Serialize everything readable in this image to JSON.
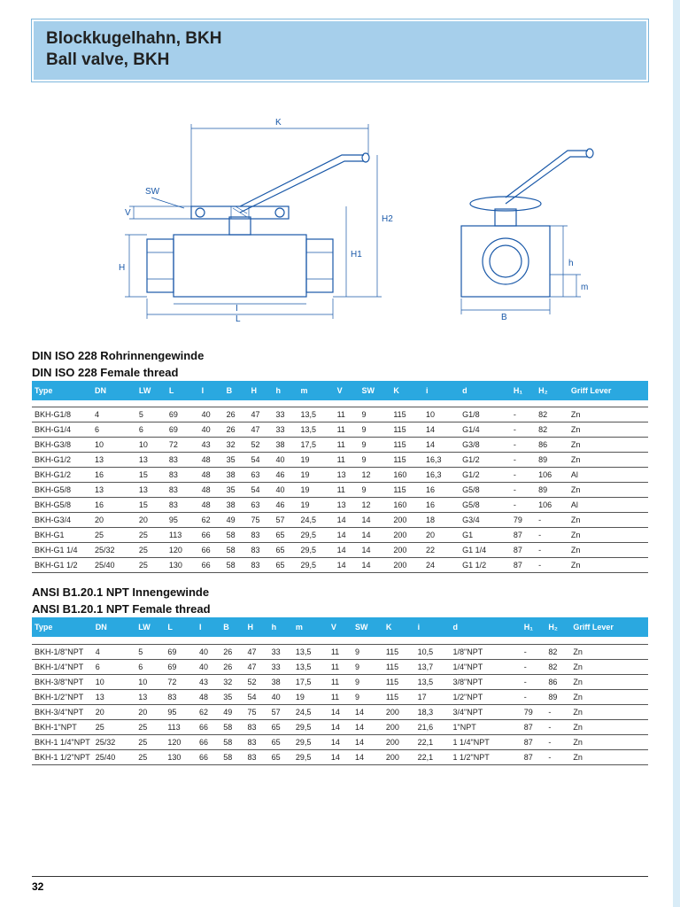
{
  "title": {
    "line1": "Blockkugelhahn, BKH",
    "line2": "Ball valve, BKH"
  },
  "diagram_labels": {
    "K": "K",
    "SW": "SW",
    "V": "V",
    "H": "H",
    "L": "L",
    "I": "I",
    "H1": "H1",
    "H2": "H2",
    "B": "B",
    "h": "h",
    "m": "m"
  },
  "tables": [
    {
      "heading1": "DIN ISO 228 Rohrinnengewinde",
      "heading2": "DIN ISO 228 Female thread",
      "columns": [
        "Type",
        "DN",
        "LW",
        "L",
        "I",
        "B",
        "H",
        "h",
        "m",
        "V",
        "SW",
        "K",
        "i",
        "d",
        "H₁",
        "H₂",
        "Griff Lever"
      ],
      "rows": [
        [
          "BKH-G1/8",
          "4",
          "5",
          "69",
          "40",
          "26",
          "47",
          "33",
          "13,5",
          "11",
          "9",
          "115",
          "10",
          "G1/8",
          "-",
          "82",
          "Zn"
        ],
        [
          "BKH-G1/4",
          "6",
          "6",
          "69",
          "40",
          "26",
          "47",
          "33",
          "13,5",
          "11",
          "9",
          "115",
          "14",
          "G1/4",
          "-",
          "82",
          "Zn"
        ],
        [
          "BKH-G3/8",
          "10",
          "10",
          "72",
          "43",
          "32",
          "52",
          "38",
          "17,5",
          "11",
          "9",
          "115",
          "14",
          "G3/8",
          "-",
          "86",
          "Zn"
        ],
        [
          "BKH-G1/2",
          "13",
          "13",
          "83",
          "48",
          "35",
          "54",
          "40",
          "19",
          "11",
          "9",
          "115",
          "16,3",
          "G1/2",
          "-",
          "89",
          "Zn"
        ],
        [
          "BKH-G1/2",
          "16",
          "15",
          "83",
          "48",
          "38",
          "63",
          "46",
          "19",
          "13",
          "12",
          "160",
          "16,3",
          "G1/2",
          "-",
          "106",
          "Al"
        ],
        [
          "BKH-G5/8",
          "13",
          "13",
          "83",
          "48",
          "35",
          "54",
          "40",
          "19",
          "11",
          "9",
          "115",
          "16",
          "G5/8",
          "-",
          "89",
          "Zn"
        ],
        [
          "BKH-G5/8",
          "16",
          "15",
          "83",
          "48",
          "38",
          "63",
          "46",
          "19",
          "13",
          "12",
          "160",
          "16",
          "G5/8",
          "-",
          "106",
          "Al"
        ],
        [
          "BKH-G3/4",
          "20",
          "20",
          "95",
          "62",
          "49",
          "75",
          "57",
          "24,5",
          "14",
          "14",
          "200",
          "18",
          "G3/4",
          "79",
          "-",
          "Zn"
        ],
        [
          "BKH-G1",
          "25",
          "25",
          "113",
          "66",
          "58",
          "83",
          "65",
          "29,5",
          "14",
          "14",
          "200",
          "20",
          "G1",
          "87",
          "-",
          "Zn"
        ],
        [
          "BKH-G1 1/4",
          "25/32",
          "25",
          "120",
          "66",
          "58",
          "83",
          "65",
          "29,5",
          "14",
          "14",
          "200",
          "22",
          "G1 1/4",
          "87",
          "-",
          "Zn"
        ],
        [
          "BKH-G1 1/2",
          "25/40",
          "25",
          "130",
          "66",
          "58",
          "83",
          "65",
          "29,5",
          "14",
          "14",
          "200",
          "24",
          "G1 1/2",
          "87",
          "-",
          "Zn"
        ]
      ]
    },
    {
      "heading1": "ANSI B1.20.1 NPT Innengewinde",
      "heading2": "ANSI B1.20.1 NPT Female thread",
      "columns": [
        "Type",
        "DN",
        "LW",
        "L",
        "I",
        "B",
        "H",
        "h",
        "m",
        "V",
        "SW",
        "K",
        "i",
        "d",
        "H₁",
        "H₂",
        "Griff Lever"
      ],
      "rows": [
        [
          "BKH-1/8\"NPT",
          "4",
          "5",
          "69",
          "40",
          "26",
          "47",
          "33",
          "13,5",
          "11",
          "9",
          "115",
          "10,5",
          "1/8\"NPT",
          "-",
          "82",
          "Zn"
        ],
        [
          "BKH-1/4\"NPT",
          "6",
          "6",
          "69",
          "40",
          "26",
          "47",
          "33",
          "13,5",
          "11",
          "9",
          "115",
          "13,7",
          "1/4\"NPT",
          "-",
          "82",
          "Zn"
        ],
        [
          "BKH-3/8\"NPT",
          "10",
          "10",
          "72",
          "43",
          "32",
          "52",
          "38",
          "17,5",
          "11",
          "9",
          "115",
          "13,5",
          "3/8\"NPT",
          "-",
          "86",
          "Zn"
        ],
        [
          "BKH-1/2\"NPT",
          "13",
          "13",
          "83",
          "48",
          "35",
          "54",
          "40",
          "19",
          "11",
          "9",
          "115",
          "17",
          "1/2\"NPT",
          "-",
          "89",
          "Zn"
        ],
        [
          "BKH-3/4\"NPT",
          "20",
          "20",
          "95",
          "62",
          "49",
          "75",
          "57",
          "24,5",
          "14",
          "14",
          "200",
          "18,3",
          "3/4\"NPT",
          "79",
          "-",
          "Zn"
        ],
        [
          "BKH-1\"NPT",
          "25",
          "25",
          "113",
          "66",
          "58",
          "83",
          "65",
          "29,5",
          "14",
          "14",
          "200",
          "21,6",
          "1\"NPT",
          "87",
          "-",
          "Zn"
        ],
        [
          "BKH-1 1/4\"NPT",
          "25/32",
          "25",
          "120",
          "66",
          "58",
          "83",
          "65",
          "29,5",
          "14",
          "14",
          "200",
          "22,1",
          "1 1/4\"NPT",
          "87",
          "-",
          "Zn"
        ],
        [
          "BKH-1 1/2\"NPT",
          "25/40",
          "25",
          "130",
          "66",
          "58",
          "83",
          "65",
          "29,5",
          "14",
          "14",
          "200",
          "22,1",
          "1 1/2\"NPT",
          "87",
          "-",
          "Zn"
        ]
      ]
    }
  ],
  "page_number": "32",
  "colors": {
    "title_bg": "#a6cfeb",
    "table_header_bg": "#2aa8e0",
    "diagram_stroke": "#1958a8"
  }
}
